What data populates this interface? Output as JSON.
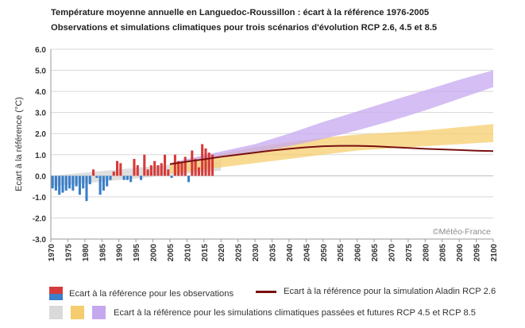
{
  "title": "Température moyenne annuelle en Languedoc-Roussillon : écart à la référence 1976-2005",
  "subtitle": "Observations et simulations climatiques pour trois scénarios d'évolution RCP 2.6, 4.5 et 8.5",
  "watermark": "©Météo-France",
  "colors": {
    "obs_positive": "#d63a3a",
    "obs_negative": "#3a7fc9",
    "rcp26_band": "#d9d9d9",
    "rcp45_band": "#f5cd6e",
    "rcp85_band": "#c6a8ef",
    "aladin_line": "#7a1010",
    "grid": "#d8d8d8"
  },
  "legend": {
    "observations": "Ecart à la référence pour les observations",
    "aladin": "Ecart à la référence pour la simulation Aladin RCP 2.6",
    "simulations": "Ecart à la référence pour les simulations climatiques passées et futures RCP 4.5 et RCP 8.5"
  },
  "chart_data": {
    "type": "bar",
    "title": "Température moyenne annuelle en Languedoc-Roussillon : écart à la référence 1976-2005",
    "subtitle": "Observations et simulations climatiques pour trois scénarios d'évolution RCP 2.6, 4.5 et 8.5",
    "xlabel": "",
    "ylabel": "Ecart à la référence (°C)",
    "xlim": [
      1970,
      2100
    ],
    "ylim": [
      -3.0,
      6.0
    ],
    "x_ticks": [
      "1970",
      "1975",
      "1980",
      "1985",
      "1990",
      "1995",
      "2000",
      "2005",
      "2010",
      "2015",
      "2020",
      "2025",
      "2030",
      "2035",
      "2040",
      "2045",
      "2050",
      "2055",
      "2060",
      "2065",
      "2070",
      "2075",
      "2080",
      "2085",
      "2090",
      "2095",
      "2100"
    ],
    "y_ticks": [
      "-3.0",
      "-2.0",
      "-1.0",
      "0.0",
      "1.0",
      "2.0",
      "3.0",
      "4.0",
      "5.0",
      "6.0"
    ],
    "grid": true,
    "observations": {
      "name": "Ecart à la référence pour les observations",
      "years": [
        1970,
        1971,
        1972,
        1973,
        1974,
        1975,
        1976,
        1977,
        1978,
        1979,
        1980,
        1981,
        1982,
        1983,
        1984,
        1985,
        1986,
        1987,
        1988,
        1989,
        1990,
        1991,
        1992,
        1993,
        1994,
        1995,
        1996,
        1997,
        1998,
        1999,
        2000,
        2001,
        2002,
        2003,
        2004,
        2005,
        2006,
        2007,
        2008,
        2009,
        2010,
        2011,
        2012,
        2013,
        2014,
        2015,
        2016,
        2017
      ],
      "values": [
        -0.6,
        -0.7,
        -0.9,
        -0.8,
        -0.7,
        -0.6,
        -0.7,
        -0.5,
        -0.9,
        -0.6,
        -1.2,
        -0.4,
        0.3,
        -0.1,
        -0.9,
        -0.7,
        -0.5,
        -0.2,
        0.2,
        0.7,
        0.6,
        -0.2,
        -0.2,
        -0.3,
        0.8,
        0.5,
        -0.2,
        1.0,
        0.3,
        0.5,
        0.7,
        0.5,
        0.6,
        1.0,
        0.3,
        -0.1,
        1.0,
        0.7,
        0.6,
        0.9,
        -0.3,
        1.2,
        0.8,
        0.4,
        1.5,
        1.3,
        1.1,
        1.0
      ]
    },
    "series": [
      {
        "name": "Ecart à la référence pour la simulation Aladin RCP 2.6",
        "type": "line",
        "x": [
          2005,
          2010,
          2015,
          2020,
          2025,
          2030,
          2035,
          2040,
          2045,
          2050,
          2055,
          2060,
          2065,
          2070,
          2075,
          2080,
          2085,
          2090,
          2095,
          2100
        ],
        "y": [
          0.55,
          0.67,
          0.78,
          0.9,
          1.0,
          1.1,
          1.2,
          1.28,
          1.35,
          1.4,
          1.42,
          1.42,
          1.4,
          1.36,
          1.32,
          1.28,
          1.25,
          1.22,
          1.19,
          1.17
        ]
      }
    ],
    "bands": [
      {
        "type": "area",
        "x": [
          1970,
          1980,
          1990,
          2000,
          2010,
          2020
        ],
        "low": [
          -0.5,
          -0.35,
          -0.2,
          -0.05,
          0.1,
          0.25
        ],
        "high": [
          0.0,
          0.15,
          0.3,
          0.45,
          0.6,
          0.75
        ]
      },
      {
        "type": "area",
        "x": [
          2005,
          2010,
          2020,
          2030,
          2040,
          2050,
          2060,
          2070,
          2080,
          2090,
          2100
        ],
        "low": [
          0.1,
          0.2,
          0.4,
          0.6,
          0.8,
          1.0,
          1.2,
          1.3,
          1.4,
          1.5,
          1.6
        ],
        "high": [
          0.6,
          0.75,
          1.05,
          1.35,
          1.6,
          1.8,
          1.95,
          2.05,
          2.15,
          2.3,
          2.45
        ]
      },
      {
        "type": "area",
        "x": [
          2005,
          2010,
          2020,
          2030,
          2040,
          2050,
          2060,
          2070,
          2080,
          2090,
          2100
        ],
        "low": [
          0.6,
          0.7,
          0.9,
          1.1,
          1.4,
          1.75,
          2.15,
          2.6,
          3.1,
          3.65,
          4.2
        ],
        "high": [
          0.6,
          0.8,
          1.15,
          1.5,
          2.0,
          2.55,
          3.05,
          3.55,
          4.05,
          4.55,
          5.0
        ]
      }
    ]
  }
}
